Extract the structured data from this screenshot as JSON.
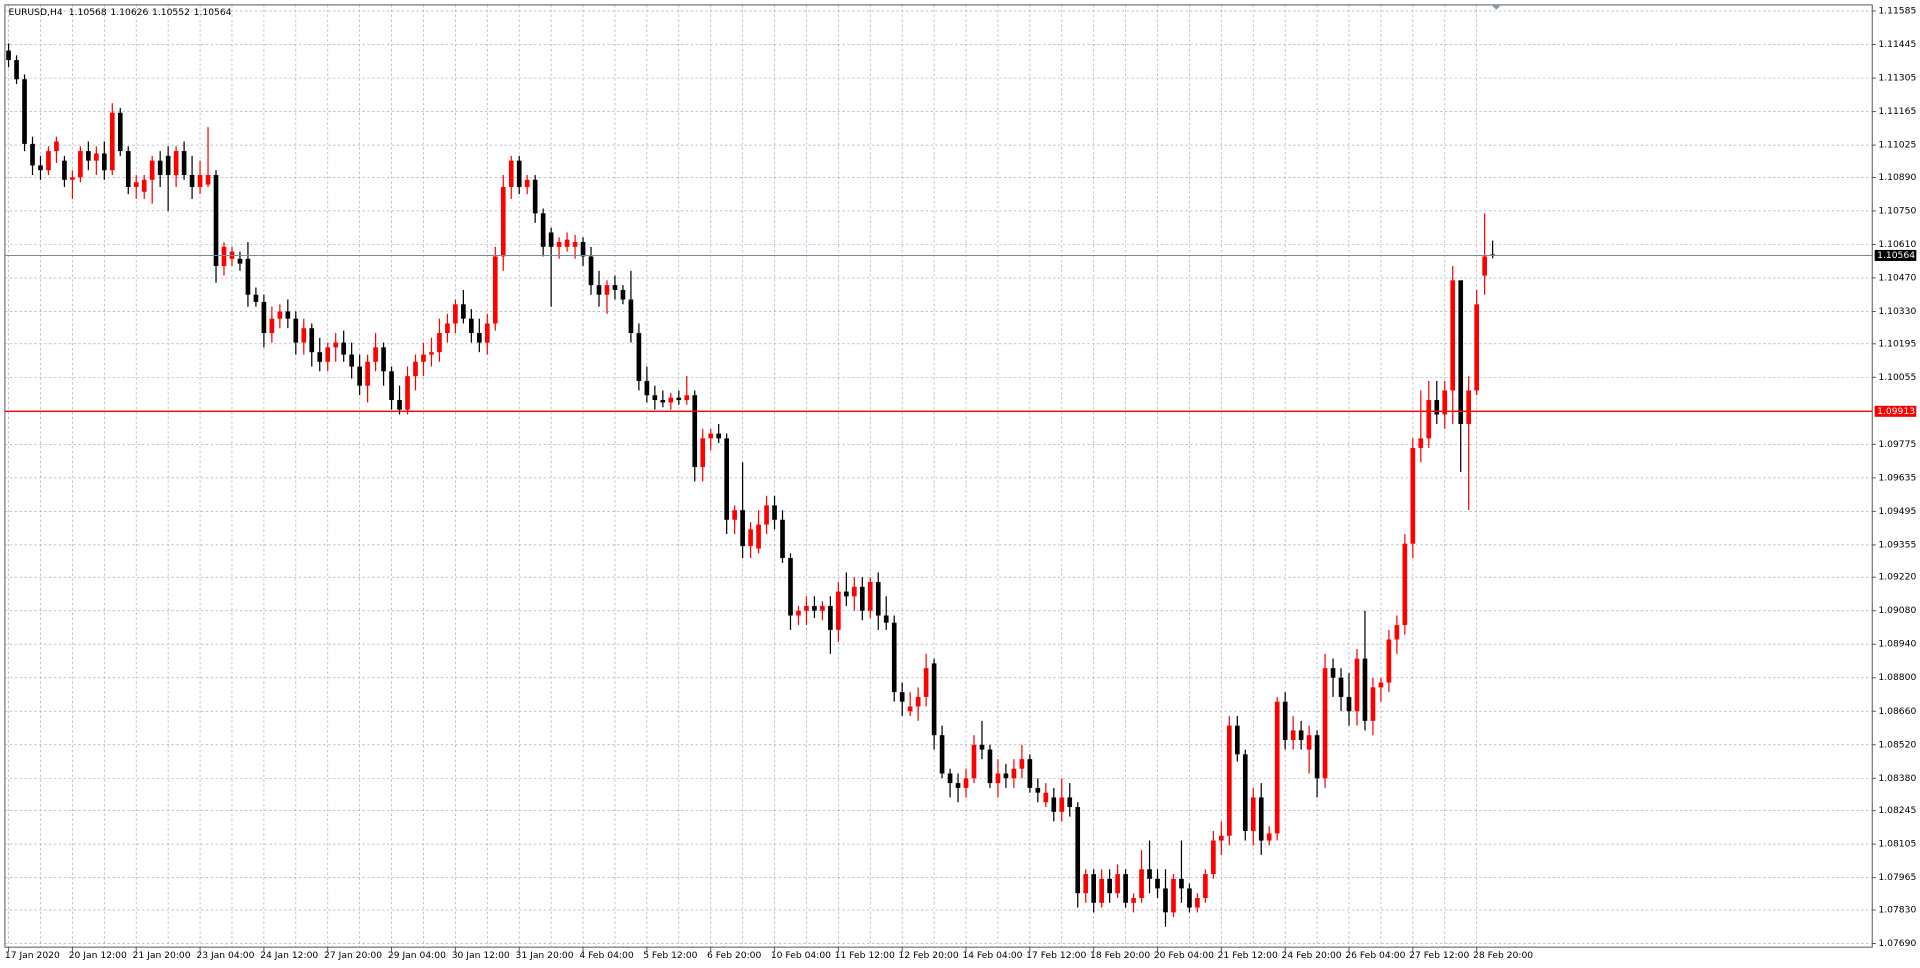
{
  "chart_data": {
    "type": "candlestick",
    "title": "EURUSD,H4",
    "up_color": "#ff0000",
    "down_color": "#000000",
    "level": 1.09913,
    "level_color": "#ff0000",
    "ylim": [
      1.0769,
      1.11585
    ],
    "yticks": [
      1.11585,
      1.11445,
      1.11305,
      1.11165,
      1.11025,
      {
        "value": 1.1089,
        "label": "1.10890"
      },
      {
        "value": 1.1075,
        "label": "1.10750"
      },
      {
        "value": 1.1061,
        "label": "1.10610"
      },
      {
        "value": 1.1047,
        "label": "1.10470"
      },
      {
        "value": 1.1033,
        "label": "1.10330"
      },
      1.10195,
      1.10055,
      1.09775,
      1.09635,
      1.09495,
      1.09355,
      {
        "value": 1.0922,
        "label": "1.09220"
      },
      {
        "value": 1.0908,
        "label": "1.09080"
      },
      {
        "value": 1.0894,
        "label": "1.08940"
      },
      {
        "value": 1.088,
        "label": "1.08800"
      },
      {
        "value": 1.0866,
        "label": "1.08660"
      },
      {
        "value": 1.0852,
        "label": "1.08520"
      },
      {
        "value": 1.0838,
        "label": "1.08380"
      },
      1.08245,
      1.08105,
      1.07965,
      {
        "value": 1.0783,
        "label": "1.07830"
      },
      {
        "value": 1.0769,
        "label": "1.07690"
      }
    ],
    "grid": true,
    "categories": [
      "17 Jan 2020",
      null,
      null,
      null,
      null,
      null,
      null,
      null,
      "20 Jan 12:00",
      null,
      null,
      null,
      null,
      null,
      null,
      null,
      "21 Jan 20:00",
      null,
      null,
      null,
      null,
      null,
      null,
      null,
      "23 Jan 04:00",
      null,
      null,
      null,
      null,
      null,
      null,
      null,
      "24 Jan 12:00",
      null,
      null,
      null,
      null,
      null,
      null,
      null,
      "27 Jan 20:00",
      null,
      null,
      null,
      null,
      null,
      null,
      null,
      "29 Jan 04:00",
      null,
      null,
      null,
      null,
      null,
      null,
      null,
      "30 Jan 12:00",
      null,
      null,
      null,
      null,
      null,
      null,
      null,
      "31 Jan 20:00",
      null,
      null,
      null,
      null,
      null,
      null,
      null,
      "4 Feb 04:00",
      null,
      null,
      null,
      null,
      null,
      null,
      null,
      "5 Feb 12:00",
      null,
      null,
      null,
      null,
      null,
      null,
      null,
      "6 Feb 20:00",
      null,
      null,
      null,
      null,
      null,
      null,
      null,
      "10 Feb 04:00",
      null,
      null,
      null,
      null,
      null,
      null,
      null,
      "11 Feb 12:00",
      null,
      null,
      null,
      null,
      null,
      null,
      null,
      "12 Feb 20:00",
      null,
      null,
      null,
      null,
      null,
      null,
      null,
      "14 Feb 04:00",
      null,
      null,
      null,
      null,
      null,
      null,
      null,
      "17 Feb 12:00",
      null,
      null,
      null,
      null,
      null,
      null,
      null,
      "18 Feb 20:00",
      null,
      null,
      null,
      null,
      null,
      null,
      null,
      "20 Feb 04:00",
      null,
      null,
      null,
      null,
      null,
      null,
      null,
      "21 Feb 12:00",
      null,
      null,
      null,
      null,
      null,
      null,
      null,
      "24 Feb 20:00",
      null,
      null,
      null,
      null,
      null,
      null,
      null,
      "26 Feb 04:00",
      null,
      null,
      null,
      null,
      null,
      null,
      null,
      "27 Feb 12:00",
      null,
      null,
      null,
      null,
      null,
      null,
      null,
      "28 Feb 20:00",
      null,
      null
    ],
    "ohlc": [
      [
        1.1142,
        1.1145,
        1.1135,
        1.1138
      ],
      [
        1.1138,
        1.114,
        1.1128,
        1.113
      ],
      [
        1.113,
        1.1132,
        1.11,
        1.1103
      ],
      [
        1.1103,
        1.1106,
        1.109,
        1.1094
      ],
      [
        1.1094,
        1.1098,
        1.1088,
        1.1092
      ],
      [
        1.1092,
        1.1102,
        1.109,
        1.11
      ],
      [
        1.11,
        1.1106,
        1.1095,
        1.1104
      ],
      [
        1.1096,
        1.1098,
        1.1085,
        1.1088
      ],
      [
        1.1088,
        1.1092,
        1.108,
        1.1089
      ],
      [
        1.1089,
        1.1102,
        1.1087,
        1.11
      ],
      [
        1.11,
        1.1104,
        1.1092,
        1.1096
      ],
      [
        1.1096,
        1.1102,
        1.109,
        1.1099
      ],
      [
        1.1099,
        1.1104,
        1.1088,
        1.1092
      ],
      [
        1.1092,
        1.112,
        1.109,
        1.1116
      ],
      [
        1.1116,
        1.1118,
        1.1098,
        1.11
      ],
      [
        1.11,
        1.1102,
        1.1082,
        1.1085
      ],
      [
        1.1085,
        1.109,
        1.108,
        1.1087
      ],
      [
        1.1083,
        1.109,
        1.108,
        1.1088
      ],
      [
        1.1088,
        1.1098,
        1.1078,
        1.1096
      ],
      [
        1.1096,
        1.11,
        1.1085,
        1.109
      ],
      [
        1.1098,
        1.1102,
        1.1075,
        1.109
      ],
      [
        1.109,
        1.1102,
        1.1085,
        1.11
      ],
      [
        1.11,
        1.1104,
        1.1088,
        1.109
      ],
      [
        1.109,
        1.1098,
        1.108,
        1.1085
      ],
      [
        1.1085,
        1.1096,
        1.1082,
        1.109
      ],
      [
        1.1086,
        1.111,
        1.1085,
        1.109
      ],
      [
        1.109,
        1.1092,
        1.1045,
        1.1052
      ],
      [
        1.1052,
        1.1062,
        1.1048,
        1.106
      ],
      [
        1.1055,
        1.106,
        1.1052,
        1.1058
      ],
      [
        1.1055,
        1.1058,
        1.105,
        1.1053
      ],
      [
        1.1055,
        1.1062,
        1.1035,
        1.104
      ],
      [
        1.104,
        1.1043,
        1.1035,
        1.1037
      ],
      [
        1.1037,
        1.104,
        1.1018,
        1.1024
      ],
      [
        1.1024,
        1.1035,
        1.102,
        1.103
      ],
      [
        1.103,
        1.1036,
        1.1026,
        1.1033
      ],
      [
        1.1033,
        1.1038,
        1.1026,
        1.103
      ],
      [
        1.103,
        1.1033,
        1.1015,
        1.102
      ],
      [
        1.102,
        1.103,
        1.1015,
        1.1026
      ],
      [
        1.1026,
        1.1028,
        1.101,
        1.1016
      ],
      [
        1.1016,
        1.1022,
        1.1008,
        1.1012
      ],
      [
        1.1012,
        1.102,
        1.1008,
        1.1018
      ],
      [
        1.1018,
        1.1024,
        1.1012,
        1.102
      ],
      [
        1.102,
        1.1025,
        1.1012,
        1.1015
      ],
      [
        1.1015,
        1.102,
        1.1005,
        1.101
      ],
      [
        1.101,
        1.1015,
        1.0998,
        1.1002
      ],
      [
        1.1002,
        1.1015,
        1.0995,
        1.1012
      ],
      [
        1.1012,
        1.1024,
        1.1008,
        1.1018
      ],
      [
        1.1018,
        1.102,
        1.1002,
        1.1008
      ],
      [
        1.1008,
        1.101,
        1.0992,
        1.0996
      ],
      [
        1.0996,
        1.1002,
        1.099,
        1.0992
      ],
      [
        1.0992,
        1.101,
        1.099,
        1.1006
      ],
      [
        1.1006,
        1.1015,
        1.1,
        1.1012
      ],
      [
        1.1012,
        1.102,
        1.1006,
        1.1015
      ],
      [
        1.1015,
        1.1022,
        1.101,
        1.1016
      ],
      [
        1.1016,
        1.103,
        1.1012,
        1.1024
      ],
      [
        1.1024,
        1.1032,
        1.102,
        1.1028
      ],
      [
        1.1028,
        1.1038,
        1.1024,
        1.1036
      ],
      [
        1.1036,
        1.1042,
        1.1028,
        1.103
      ],
      [
        1.103,
        1.1034,
        1.102,
        1.1024
      ],
      [
        1.1024,
        1.103,
        1.1016,
        1.102
      ],
      [
        1.102,
        1.1032,
        1.1015,
        1.1028
      ],
      [
        1.1028,
        1.106,
        1.1025,
        1.1056
      ],
      [
        1.1056,
        1.109,
        1.105,
        1.1085
      ],
      [
        1.1085,
        1.1098,
        1.108,
        1.1096
      ],
      [
        1.1096,
        1.1098,
        1.1082,
        1.1085
      ],
      [
        1.1085,
        1.109,
        1.1082,
        1.1088
      ],
      [
        1.1088,
        1.109,
        1.107,
        1.1074
      ],
      [
        1.1074,
        1.1076,
        1.1056,
        1.106
      ],
      [
        1.1066,
        1.1068,
        1.1035,
        1.106
      ],
      [
        1.106,
        1.1064,
        1.1055,
        1.1062
      ],
      [
        1.106,
        1.1066,
        1.1058,
        1.1063
      ],
      [
        1.106,
        1.1065,
        1.1055,
        1.1062
      ],
      [
        1.1062,
        1.1064,
        1.1052,
        1.1056
      ],
      [
        1.1056,
        1.106,
        1.104,
        1.1044
      ],
      [
        1.1044,
        1.105,
        1.1035,
        1.104
      ],
      [
        1.104,
        1.1046,
        1.1032,
        1.1044
      ],
      [
        1.1044,
        1.1048,
        1.1038,
        1.1042
      ],
      [
        1.1042,
        1.1044,
        1.1036,
        1.1038
      ],
      [
        1.1038,
        1.105,
        1.102,
        1.1024
      ],
      [
        1.1024,
        1.1028,
        1.1,
        1.1004
      ],
      [
        1.1004,
        1.101,
        1.0995,
        1.0998
      ],
      [
        1.0998,
        1.1002,
        1.0992,
        1.0996
      ],
      [
        1.0996,
        1.1,
        1.0993,
        1.0995
      ],
      [
        1.0995,
        1.0999,
        1.0992,
        1.0997
      ],
      [
        1.0997,
        1.1,
        1.0994,
        1.0996
      ],
      [
        1.0996,
        1.1006,
        1.0994,
        1.0998
      ],
      [
        1.0998,
        1.1,
        1.0962,
        1.0968
      ],
      [
        1.0968,
        1.0984,
        1.0962,
        1.098
      ],
      [
        1.098,
        1.0984,
        1.0975,
        1.0982
      ],
      [
        1.0982,
        1.0986,
        1.0978,
        1.098
      ],
      [
        1.098,
        1.0982,
        1.094,
        1.0946
      ],
      [
        1.0946,
        1.0952,
        1.094,
        1.095
      ],
      [
        1.095,
        1.097,
        1.093,
        1.0935
      ],
      [
        1.0935,
        1.0945,
        1.093,
        1.0942
      ],
      [
        1.0934,
        1.095,
        1.0932,
        1.0944
      ],
      [
        1.0944,
        1.0956,
        1.094,
        1.0952
      ],
      [
        1.0952,
        1.0956,
        1.0942,
        1.0946
      ],
      [
        1.0946,
        1.095,
        1.0928,
        1.093
      ],
      [
        1.093,
        1.0932,
        1.09,
        1.0906
      ],
      [
        1.0906,
        1.091,
        1.0902,
        1.0908
      ],
      [
        1.0908,
        1.0914,
        1.0902,
        1.091
      ],
      [
        1.091,
        1.0914,
        1.0905,
        1.0908
      ],
      [
        1.0908,
        1.0912,
        1.0904,
        1.091
      ],
      [
        1.091,
        1.0914,
        1.089,
        1.09
      ],
      [
        1.09,
        1.092,
        1.0895,
        1.0916
      ],
      [
        1.0916,
        1.0924,
        1.091,
        1.0914
      ],
      [
        1.0914,
        1.0922,
        1.0908,
        1.0918
      ],
      [
        1.0918,
        1.0922,
        1.0904,
        1.0908
      ],
      [
        1.0908,
        1.0922,
        1.0905,
        1.092
      ],
      [
        1.092,
        1.0924,
        1.09,
        1.0906
      ],
      [
        1.0906,
        1.0914,
        1.09,
        1.0903
      ],
      [
        1.0903,
        1.0906,
        1.087,
        1.0874
      ],
      [
        1.0874,
        1.0878,
        1.0864,
        1.087
      ],
      [
        1.0866,
        1.0874,
        1.0864,
        1.0868
      ],
      [
        1.0868,
        1.0876,
        1.0862,
        1.0872
      ],
      [
        1.0872,
        1.089,
        1.0868,
        1.0884
      ],
      [
        1.0886,
        1.0888,
        1.085,
        1.0856
      ],
      [
        1.0856,
        1.086,
        1.0838,
        1.084
      ],
      [
        1.084,
        1.0842,
        1.083,
        1.0836
      ],
      [
        1.0836,
        1.084,
        1.0828,
        1.0834
      ],
      [
        1.0834,
        1.0842,
        1.083,
        1.0838
      ],
      [
        1.0838,
        1.0856,
        1.0836,
        1.0852
      ],
      [
        1.0852,
        1.0862,
        1.0846,
        1.085
      ],
      [
        1.085,
        1.0852,
        1.0834,
        1.0836
      ],
      [
        1.0836,
        1.0846,
        1.083,
        1.084
      ],
      [
        1.084,
        1.0844,
        1.0834,
        1.0838
      ],
      [
        1.0838,
        1.0846,
        1.0834,
        1.0842
      ],
      [
        1.0842,
        1.0852,
        1.0838,
        1.0846
      ],
      [
        1.0846,
        1.0848,
        1.0832,
        1.0834
      ],
      [
        1.0834,
        1.0838,
        1.0828,
        1.0832
      ],
      [
        1.0828,
        1.0836,
        1.0826,
        1.0832
      ],
      [
        1.083,
        1.0834,
        1.082,
        1.0824
      ],
      [
        1.0824,
        1.0838,
        1.082,
        1.083
      ],
      [
        1.083,
        1.0836,
        1.0822,
        1.0826
      ],
      [
        1.0826,
        1.0828,
        1.0784,
        1.079
      ],
      [
        1.079,
        1.08,
        1.0786,
        1.0798
      ],
      [
        1.0798,
        1.08,
        1.0782,
        1.0786
      ],
      [
        1.0786,
        1.08,
        1.0784,
        1.0796
      ],
      [
        1.0796,
        1.08,
        1.0786,
        1.079
      ],
      [
        1.079,
        1.0802,
        1.0788,
        1.0798
      ],
      [
        1.0798,
        1.08,
        1.0784,
        1.0786
      ],
      [
        1.0786,
        1.079,
        1.0782,
        1.0788
      ],
      [
        1.0788,
        1.0808,
        1.0786,
        1.08
      ],
      [
        1.08,
        1.0812,
        1.079,
        1.0796
      ],
      [
        1.0796,
        1.08,
        1.0788,
        1.0792
      ],
      [
        1.0792,
        1.08,
        1.0776,
        1.0782
      ],
      [
        1.0782,
        1.0798,
        1.078,
        1.0796
      ],
      [
        1.0796,
        1.0812,
        1.0786,
        1.0792
      ],
      [
        1.0792,
        1.0794,
        1.0782,
        1.0784
      ],
      [
        1.0784,
        1.079,
        1.0782,
        1.0788
      ],
      [
        1.0788,
        1.08,
        1.0786,
        1.0798
      ],
      [
        1.0798,
        1.0816,
        1.0796,
        1.0812
      ],
      [
        1.0812,
        1.082,
        1.0806,
        1.0814
      ],
      [
        1.0814,
        1.0864,
        1.081,
        1.086
      ],
      [
        1.086,
        1.0864,
        1.0845,
        1.0848
      ],
      [
        1.0848,
        1.085,
        1.0812,
        1.0816
      ],
      [
        1.0816,
        1.0834,
        1.081,
        1.083
      ],
      [
        1.083,
        1.0836,
        1.0806,
        1.0812
      ],
      [
        1.0812,
        1.0818,
        1.081,
        1.0815
      ],
      [
        1.0815,
        1.0872,
        1.0812,
        1.087
      ],
      [
        1.087,
        1.0874,
        1.085,
        1.0854
      ],
      [
        1.0854,
        1.0864,
        1.085,
        1.0858
      ],
      [
        1.0858,
        1.0862,
        1.085,
        1.0854
      ],
      [
        1.085,
        1.086,
        1.084,
        1.0856
      ],
      [
        1.0856,
        1.0858,
        1.083,
        1.0838
      ],
      [
        1.0838,
        1.089,
        1.0834,
        1.0884
      ],
      [
        1.0884,
        1.0888,
        1.0872,
        1.088
      ],
      [
        1.088,
        1.0884,
        1.0866,
        1.0872
      ],
      [
        1.0872,
        1.0882,
        1.086,
        1.0866
      ],
      [
        1.0866,
        1.0892,
        1.086,
        1.0888
      ],
      [
        1.0888,
        1.0908,
        1.0858,
        1.0862
      ],
      [
        1.0862,
        1.088,
        1.0856,
        1.0876
      ],
      [
        1.0876,
        1.088,
        1.087,
        1.0878
      ],
      [
        1.0878,
        1.09,
        1.0874,
        1.0896
      ],
      [
        1.0896,
        1.0906,
        1.089,
        1.0902
      ],
      [
        1.0902,
        1.094,
        1.0898,
        1.0936
      ],
      [
        1.0936,
        1.098,
        1.093,
        1.0976
      ],
      [
        1.0976,
        1.1,
        1.097,
        1.098
      ],
      [
        1.098,
        1.1004,
        1.0976,
        1.0996
      ],
      [
        1.0996,
        1.1004,
        1.0986,
        1.099
      ],
      [
        1.099,
        1.1004,
        1.0984,
        1.1
      ],
      [
        1.1,
        1.1052,
        1.0986,
        1.1046
      ],
      [
        1.1046,
        1.1046,
        1.0966,
        1.0986
      ],
      [
        1.0986,
        1.1006,
        1.095,
        1.1
      ],
      [
        1.1,
        1.1042,
        1.0998,
        1.1036
      ],
      [
        1.1048,
        1.1074,
        1.104,
        1.1056
      ],
      [
        1.10568,
        1.10626,
        1.10552,
        1.10564
      ]
    ]
  }
}
